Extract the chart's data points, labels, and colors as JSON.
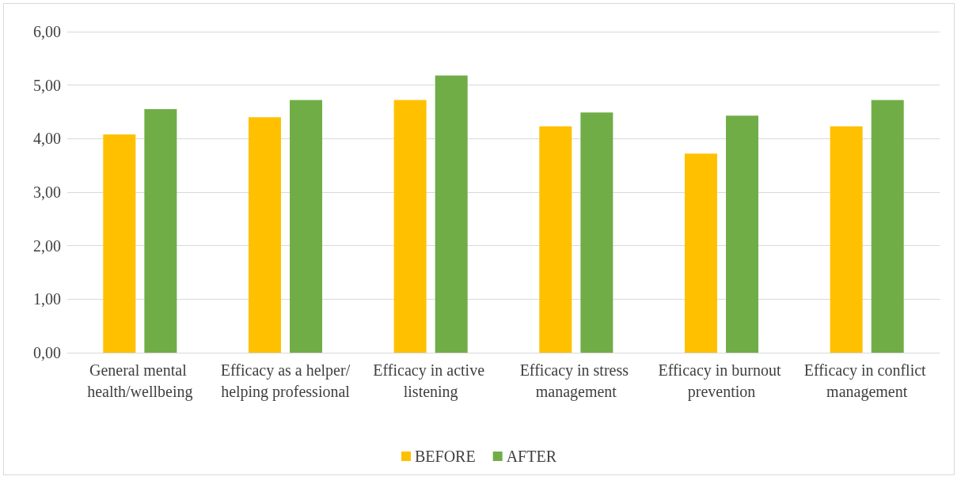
{
  "chart_data": {
    "type": "bar",
    "categories": [
      "General mental health/wellbeing",
      "Efficacy as a helper/helping professional",
      "Efficacy in active listening",
      "Efficacy in stress management",
      "Efficacy in burnout prevention",
      "Efficacy in conflict management"
    ],
    "series": [
      {
        "name": "BEFORE",
        "color": "#ffc000",
        "values": [
          4.08,
          4.4,
          4.72,
          4.23,
          3.72,
          4.23
        ]
      },
      {
        "name": "AFTER",
        "color": "#70ad47",
        "values": [
          4.55,
          4.72,
          5.18,
          4.49,
          4.43,
          4.72
        ]
      }
    ],
    "ylim": [
      0,
      6
    ],
    "yticks": [
      {
        "value": 0,
        "label": "0,00"
      },
      {
        "value": 1,
        "label": "1,00"
      },
      {
        "value": 2,
        "label": "2,00"
      },
      {
        "value": 3,
        "label": "3,00"
      },
      {
        "value": 4,
        "label": "4,00"
      },
      {
        "value": 5,
        "label": "5,00"
      },
      {
        "value": 6,
        "label": "6,00"
      }
    ],
    "grid": "y",
    "legend": "bottom"
  }
}
